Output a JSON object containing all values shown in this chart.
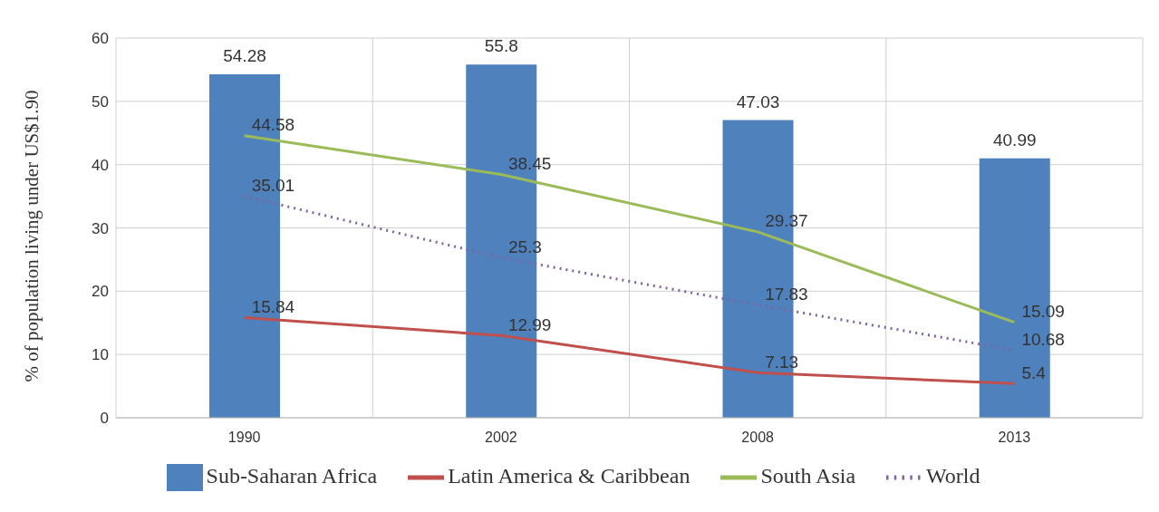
{
  "chart_data": {
    "type": "bar",
    "ylabel": "% of population living under US$1.90",
    "categories": [
      "1990",
      "2002",
      "2008",
      "2013"
    ],
    "series": [
      {
        "name": "Sub-Saharan Africa",
        "color": "#4f81bd",
        "values": [
          54.28,
          55.8,
          47.03,
          40.99
        ]
      },
      {
        "name": "Latin America & Caribbean",
        "type": "line",
        "color": "#c0504d",
        "values": [
          15.84,
          12.99,
          7.13,
          5.4
        ]
      },
      {
        "name": "South Asia",
        "type": "line",
        "color": "#9bbb59",
        "values": [
          44.58,
          38.45,
          29.37,
          15.09
        ]
      },
      {
        "name": "World",
        "type": "line",
        "color": "#8064a2",
        "line_style": "dotted",
        "values": [
          35.01,
          25.3,
          17.83,
          10.68
        ]
      }
    ],
    "ylim": [
      0,
      60
    ],
    "yticks": [
      0,
      10,
      20,
      30,
      40,
      50,
      60
    ],
    "grid": true,
    "legend": "bottom",
    "data_labels": true,
    "marker": "none"
  }
}
